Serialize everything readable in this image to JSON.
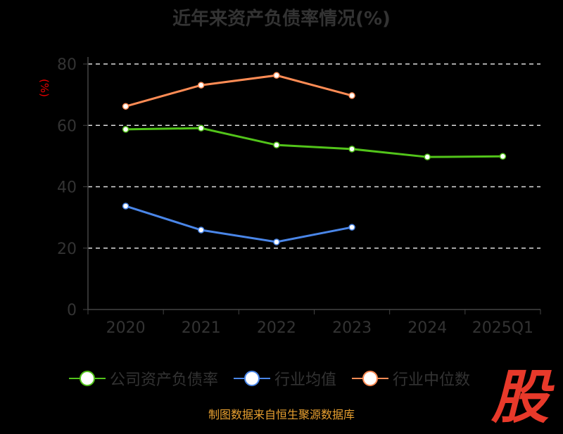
{
  "chart_data": {
    "type": "line",
    "title": "近年来资产负债率情况(%)",
    "ylabel": "(%)",
    "xlabel": "",
    "categories": [
      "2020",
      "2021",
      "2022",
      "2023",
      "2024",
      "2025Q1"
    ],
    "ylim": [
      0,
      80
    ],
    "yticks": [
      "0",
      "20",
      "40",
      "60",
      "80"
    ],
    "grid": true,
    "legend_position": "bottom",
    "series": [
      {
        "name": "公司资产负债率",
        "color": "#52c41a",
        "values": [
          58.7,
          59.1,
          53.6,
          52.3,
          49.7,
          49.9
        ]
      },
      {
        "name": "行业均值",
        "color": "#4a86e8",
        "values": [
          33.7,
          25.9,
          22.0,
          26.8,
          null,
          null
        ]
      },
      {
        "name": "行业中位数",
        "color": "#ff8c55",
        "values": [
          66.2,
          73.1,
          76.3,
          69.7,
          null,
          null
        ]
      }
    ]
  },
  "footer": "制图数据来自恒生聚源数据库",
  "watermark": "股"
}
